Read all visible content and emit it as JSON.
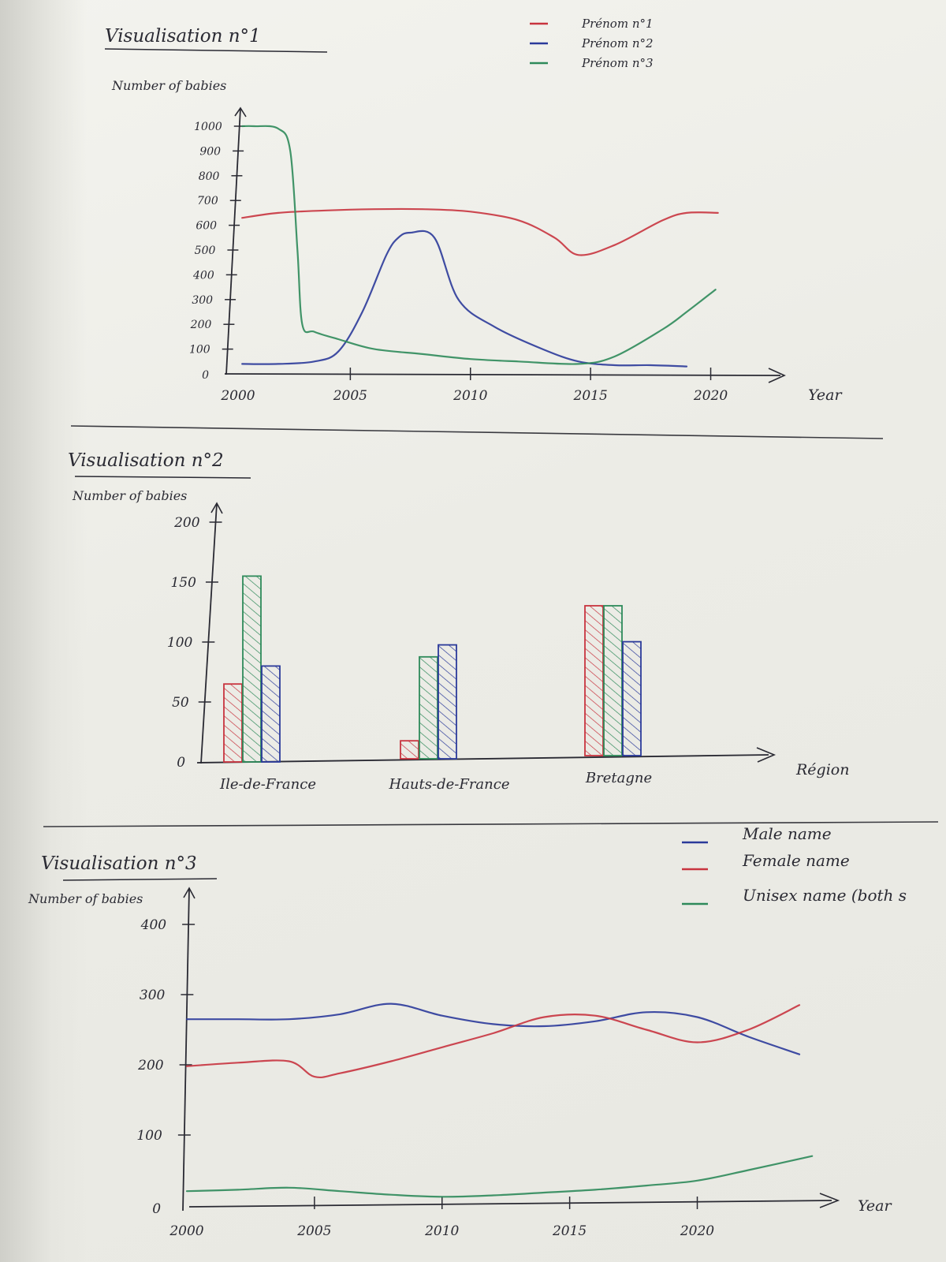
{
  "chart_data": [
    {
      "type": "line",
      "title": "Visualisation n°1",
      "ylabel": "Number of babies",
      "xlabel": "Year",
      "x_ticks": [
        2000,
        2005,
        2010,
        2015,
        2020
      ],
      "x_tick_labels": [
        "2000",
        "2005",
        "2010",
        "2015",
        "2020"
      ],
      "y_ticks": [
        0,
        100,
        200,
        300,
        400,
        500,
        600,
        700,
        800,
        900,
        1000
      ],
      "y_tick_labels": [
        "0",
        "100",
        "200",
        "300",
        "400",
        "500",
        "600",
        "700",
        "800",
        "900",
        "1000"
      ],
      "xlim": [
        2000,
        2021
      ],
      "ylim": [
        0,
        1000
      ],
      "legend_position": "top-right",
      "series": [
        {
          "name": "Prénom n°1",
          "color": "#c8343f",
          "x": [
            2000.5,
            2002,
            2004,
            2006,
            2008,
            2010,
            2012,
            2013.5,
            2014.5,
            2016,
            2018,
            2019,
            2020.3
          ],
          "y": [
            630,
            650,
            660,
            665,
            665,
            655,
            620,
            550,
            480,
            520,
            620,
            650,
            650
          ]
        },
        {
          "name": "Prénom n°2",
          "color": "#2b3a9a",
          "x": [
            2000.5,
            2002,
            2003.5,
            2004.5,
            2005.5,
            2006.5,
            2007,
            2007.5,
            2008.5,
            2009.5,
            2011,
            2013,
            2014.5,
            2016,
            2017.5,
            2019
          ],
          "y": [
            40,
            40,
            50,
            90,
            250,
            480,
            550,
            570,
            550,
            300,
            190,
            100,
            50,
            35,
            35,
            30
          ]
        },
        {
          "name": "Prénom n°3",
          "color": "#2e8a5a",
          "x": [
            2000.5,
            2001,
            2002,
            2002.5,
            2002.8,
            2003,
            2003.5,
            2004.5,
            2006,
            2008,
            2010,
            2012,
            2014.5,
            2016,
            2018,
            2019,
            2020.2
          ],
          "y": [
            1000,
            1000,
            990,
            900,
            500,
            200,
            170,
            140,
            100,
            80,
            60,
            50,
            40,
            70,
            180,
            250,
            340
          ]
        }
      ]
    },
    {
      "type": "bar",
      "title": "Visualisation n°2",
      "ylabel": "Number of babies",
      "xlabel": "Région",
      "categories": [
        "Ile-de-France",
        "Hauts-de-France",
        "Bretagne"
      ],
      "y_ticks": [
        0,
        50,
        100,
        150,
        200
      ],
      "y_tick_labels": [
        "0",
        "50",
        "100",
        "150",
        "200"
      ],
      "ylim": [
        0,
        200
      ],
      "series": [
        {
          "color": "#c8343f",
          "values": [
            65,
            15,
            125
          ]
        },
        {
          "color": "#2e8a5a",
          "values": [
            155,
            85,
            125
          ]
        },
        {
          "color": "#2b3a9a",
          "values": [
            80,
            95,
            95
          ]
        }
      ]
    },
    {
      "type": "line",
      "title": "Visualisation n°3",
      "ylabel": "Number of babies",
      "xlabel": "Year",
      "x_ticks": [
        2000,
        2005,
        2010,
        2015,
        2020
      ],
      "x_tick_labels": [
        "2000",
        "2005",
        "2010",
        "2015",
        "2020"
      ],
      "y_ticks": [
        0,
        100,
        200,
        300,
        400
      ],
      "y_tick_labels": [
        "0",
        "100",
        "200",
        "300",
        "400"
      ],
      "xlim": [
        2000,
        2024
      ],
      "ylim": [
        0,
        400
      ],
      "legend_position": "top-right",
      "series": [
        {
          "name": "Male name",
          "color": "#2b3a9a",
          "x": [
            2000,
            2002,
            2004,
            2006,
            2008,
            2010,
            2012,
            2014,
            2016,
            2018,
            2020,
            2022,
            2024
          ],
          "y": [
            265,
            265,
            265,
            272,
            287,
            270,
            258,
            255,
            262,
            275,
            268,
            240,
            215
          ]
        },
        {
          "name": "Female name",
          "color": "#c8343f",
          "x": [
            2000,
            2002,
            2004,
            2005,
            2006,
            2008,
            2010,
            2012,
            2014,
            2016,
            2018,
            2020,
            2022,
            2024
          ],
          "y": [
            198,
            203,
            205,
            183,
            188,
            205,
            225,
            245,
            268,
            270,
            250,
            232,
            250,
            285
          ]
        },
        {
          "name": "Unisex name (both s",
          "color": "#2e8a5a",
          "x": [
            2000,
            2002,
            2004,
            2006,
            2008,
            2010,
            2012,
            2014,
            2016,
            2018,
            2020,
            2022,
            2024.5
          ],
          "y": [
            20,
            22,
            25,
            20,
            15,
            12,
            14,
            18,
            22,
            28,
            35,
            50,
            70
          ]
        }
      ]
    }
  ]
}
